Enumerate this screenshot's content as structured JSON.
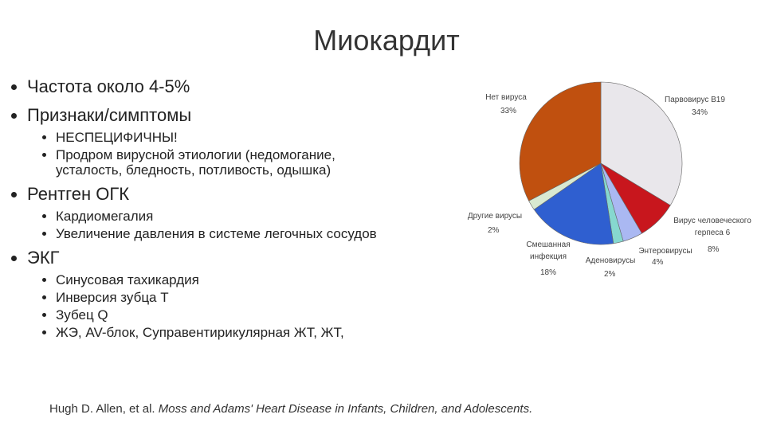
{
  "title": "Миокардит",
  "bullets": [
    {
      "text": "Частота около 4-5%"
    },
    {
      "text": "Признаки/симптомы",
      "items": [
        "НЕСПЕЦИФИЧНЫ!",
        "Продром вирусной этиологии (недомогание, усталость, бледность, потливость, одышка)"
      ]
    },
    {
      "text": "Рентген ОГК",
      "items": [
        "Кардиомегалия",
        "Увеличение давления в системе легочных сосудов"
      ]
    },
    {
      "text": "ЭКГ",
      "items": [
        "Синусовая тахикардия",
        "Инверсия зубца Т",
        "Зубец Q",
        "ЖЭ, AV-блок, Суправентирикулярная ЖТ, ЖТ,"
      ]
    }
  ],
  "citation": {
    "authors": "Hugh D. Allen, et al.",
    "book": "Moss and Adams' Heart Disease in Infants, Children, and Adolescents."
  },
  "chart_data": {
    "type": "pie",
    "categories": [
      "Парвовирус B19",
      "Вирус человеческого герпеса 6",
      "Энтеровирусы",
      "Аденовирусы",
      "Смешанная инфекция",
      "Другие вирусы",
      "Нет вируса"
    ],
    "values": [
      34,
      8,
      4,
      2,
      18,
      2,
      33
    ],
    "value_labels": [
      "34%",
      "8%",
      "4%",
      "2%",
      "18%",
      "2%",
      "33%"
    ],
    "colors": [
      "#e9e7eb",
      "#c8161d",
      "#aab8f2",
      "#86d8cf",
      "#2f5fd0",
      "#d9e9d1",
      "#c0500f"
    ]
  }
}
